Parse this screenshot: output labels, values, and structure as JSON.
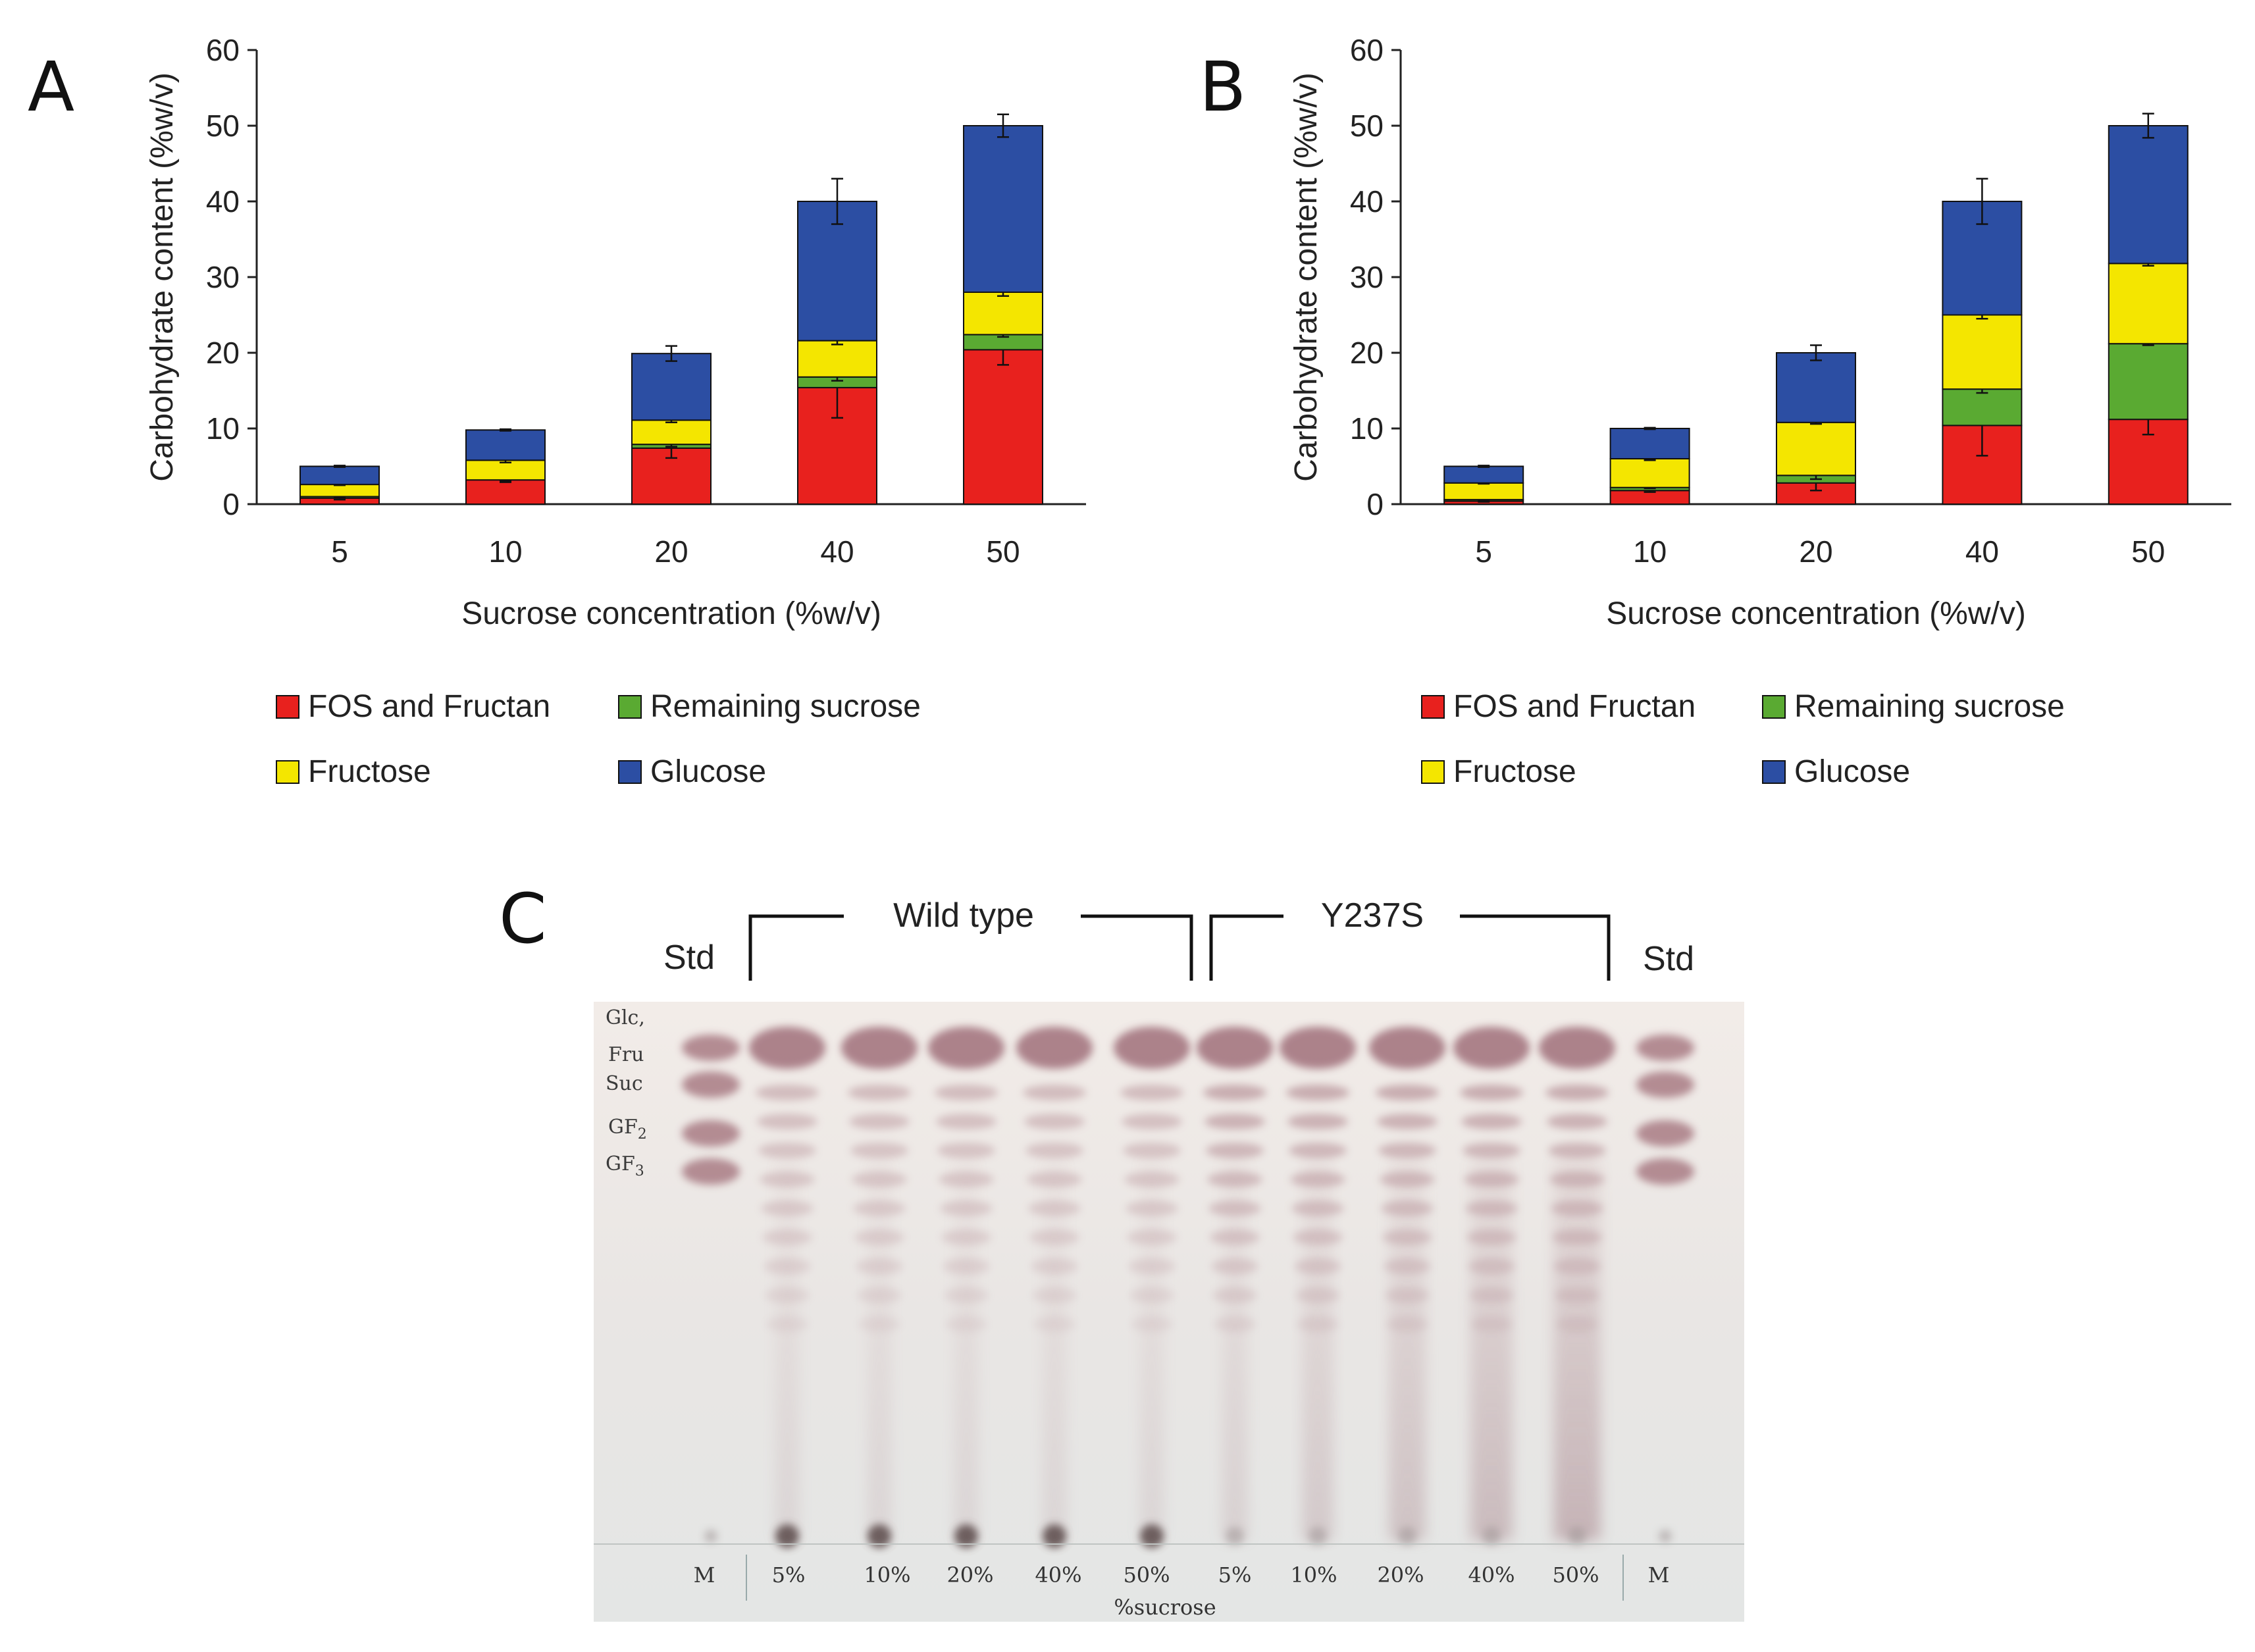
{
  "chart_data": [
    {
      "panel": "A",
      "type": "bar",
      "stacked": true,
      "categories": [
        "5",
        "10",
        "20",
        "40",
        "50"
      ],
      "xlabel": "Sucrose concentration (%w/v)",
      "ylabel": "Carbohydrate content (%w/v)",
      "ylim": [
        0,
        60
      ],
      "yticks": [
        0,
        10,
        20,
        30,
        40,
        50,
        60
      ],
      "legend": "bottom",
      "series": [
        {
          "name": "FOS and Fructan",
          "color": "#e8211e",
          "values": [
            0.8,
            3.2,
            7.4,
            15.4,
            20.4
          ],
          "errors": [
            0.2,
            0.3,
            1.3,
            4.0,
            2.0
          ]
        },
        {
          "name": "Remaining sucrose",
          "color": "#5aaa32",
          "values": [
            0.2,
            0.0,
            0.5,
            1.4,
            2.0
          ],
          "errors": [
            0.1,
            0.1,
            0.3,
            0.5,
            0.3
          ]
        },
        {
          "name": "Fructose",
          "color": "#f4e600",
          "values": [
            1.6,
            2.6,
            3.2,
            4.8,
            5.6
          ],
          "errors": [
            0.1,
            0.3,
            0.3,
            0.5,
            0.5
          ]
        },
        {
          "name": "Glucose",
          "color": "#2c4ea3",
          "values": [
            2.4,
            4.0,
            8.8,
            18.4,
            22.0
          ],
          "errors": [
            0.1,
            0.1,
            1.0,
            3.0,
            1.5
          ]
        }
      ]
    },
    {
      "panel": "B",
      "type": "bar",
      "stacked": true,
      "categories": [
        "5",
        "10",
        "20",
        "40",
        "50"
      ],
      "xlabel": "Sucrose concentration (%w/v)",
      "ylabel": "Carbohydrate content (%w/v)",
      "ylim": [
        0,
        60
      ],
      "yticks": [
        0,
        10,
        20,
        30,
        40,
        50,
        60
      ],
      "legend": "bottom",
      "series": [
        {
          "name": "FOS and Fructan",
          "color": "#e8211e",
          "values": [
            0.4,
            1.8,
            2.8,
            10.4,
            11.2
          ],
          "errors": [
            0.1,
            0.2,
            1.0,
            4.0,
            2.0
          ]
        },
        {
          "name": "Remaining sucrose",
          "color": "#5aaa32",
          "values": [
            0.2,
            0.4,
            1.0,
            4.8,
            10.0
          ],
          "errors": [
            0.1,
            0.1,
            0.5,
            0.5,
            0.2
          ]
        },
        {
          "name": "Fructose",
          "color": "#f4e600",
          "values": [
            2.2,
            3.8,
            7.0,
            9.8,
            10.6
          ],
          "errors": [
            0.1,
            0.2,
            0.2,
            0.5,
            0.3
          ]
        },
        {
          "name": "Glucose",
          "color": "#2c4ea3",
          "values": [
            2.2,
            4.0,
            9.2,
            15.0,
            18.2
          ],
          "errors": [
            0.1,
            0.1,
            1.0,
            3.0,
            1.6
          ]
        }
      ]
    }
  ],
  "panel_c": {
    "letter": "C",
    "std_left": "Std",
    "std_right": "Std",
    "group1": "Wild type",
    "group2": "Y237S",
    "markers": [
      "Glc,",
      "Fru",
      "Suc",
      "GF",
      "GF"
    ],
    "marker_subscripts": [
      "2",
      "3"
    ],
    "lane_labels": [
      "M",
      "5%",
      "10%",
      "20%",
      "40%",
      "50%",
      "5%",
      "10%",
      "20%",
      "40%",
      "50%",
      "M"
    ],
    "footer": "%sucrose"
  }
}
